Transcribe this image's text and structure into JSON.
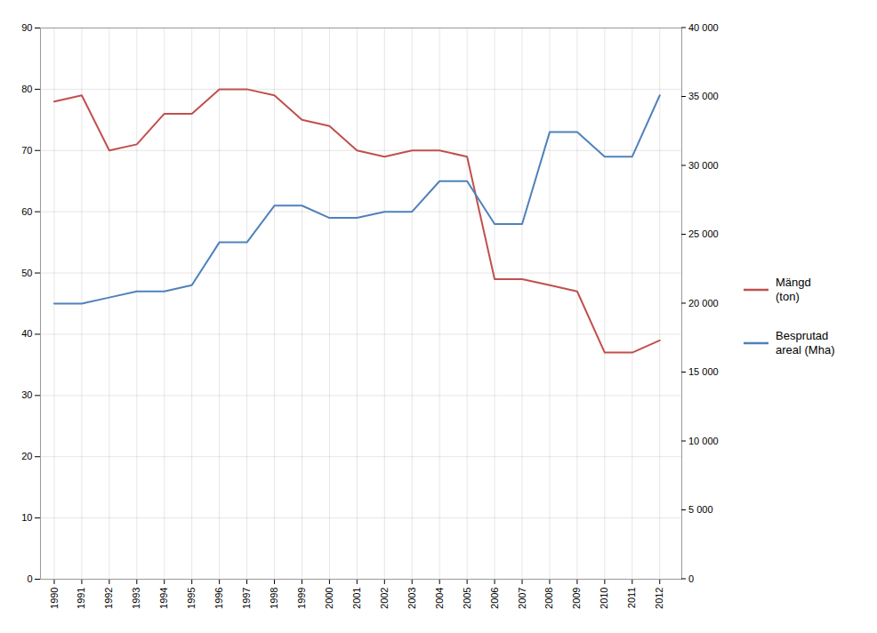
{
  "chart_data": {
    "type": "line",
    "x": [
      1990,
      1991,
      1992,
      1993,
      1994,
      1995,
      1996,
      1997,
      1998,
      1999,
      2000,
      2001,
      2002,
      2003,
      2004,
      2005,
      2006,
      2007,
      2008,
      2009,
      2010,
      2011,
      2012
    ],
    "xlim": [
      1989.5,
      2012.8
    ],
    "xticks": [
      1990,
      1991,
      1992,
      1993,
      1994,
      1995,
      1996,
      1997,
      1998,
      1999,
      2000,
      2001,
      2002,
      2003,
      2004,
      2005,
      2006,
      2007,
      2008,
      2009,
      2010,
      2011,
      2012
    ],
    "ylim": [
      0,
      90
    ],
    "yticks": [
      0,
      10,
      20,
      30,
      40,
      50,
      60,
      70,
      80,
      90
    ],
    "y2lim": [
      0,
      40000
    ],
    "y2ticks": [
      0,
      {
        "value": 5000,
        "label": "5 000"
      },
      {
        "value": 10000,
        "label": "10 000"
      },
      {
        "value": 15000,
        "label": "15 000"
      },
      {
        "value": 20000,
        "label": "20 000"
      },
      {
        "value": 25000,
        "label": "25 000"
      },
      {
        "value": 30000,
        "label": "30 000"
      },
      {
        "value": 35000,
        "label": "35 000"
      },
      {
        "value": 40000,
        "label": "40 000"
      }
    ],
    "grid": true,
    "legend": "right",
    "series": [
      {
        "name": "Mängd\n(ton)",
        "color": "#C0504D",
        "values": [
          78,
          79,
          70,
          71,
          76,
          76,
          80,
          80,
          79,
          75,
          74,
          70,
          69,
          70,
          70,
          69,
          49,
          49,
          48,
          47,
          37,
          37,
          39
        ]
      },
      {
        "name": "Besprutad\nareal (Mha)",
        "color": "#4F81BD",
        "values": [
          45,
          45,
          46,
          47,
          47,
          48,
          55,
          55,
          61,
          61,
          59,
          59,
          60,
          60,
          65,
          65,
          58,
          58,
          73,
          73,
          69,
          69,
          79
        ]
      }
    ]
  }
}
